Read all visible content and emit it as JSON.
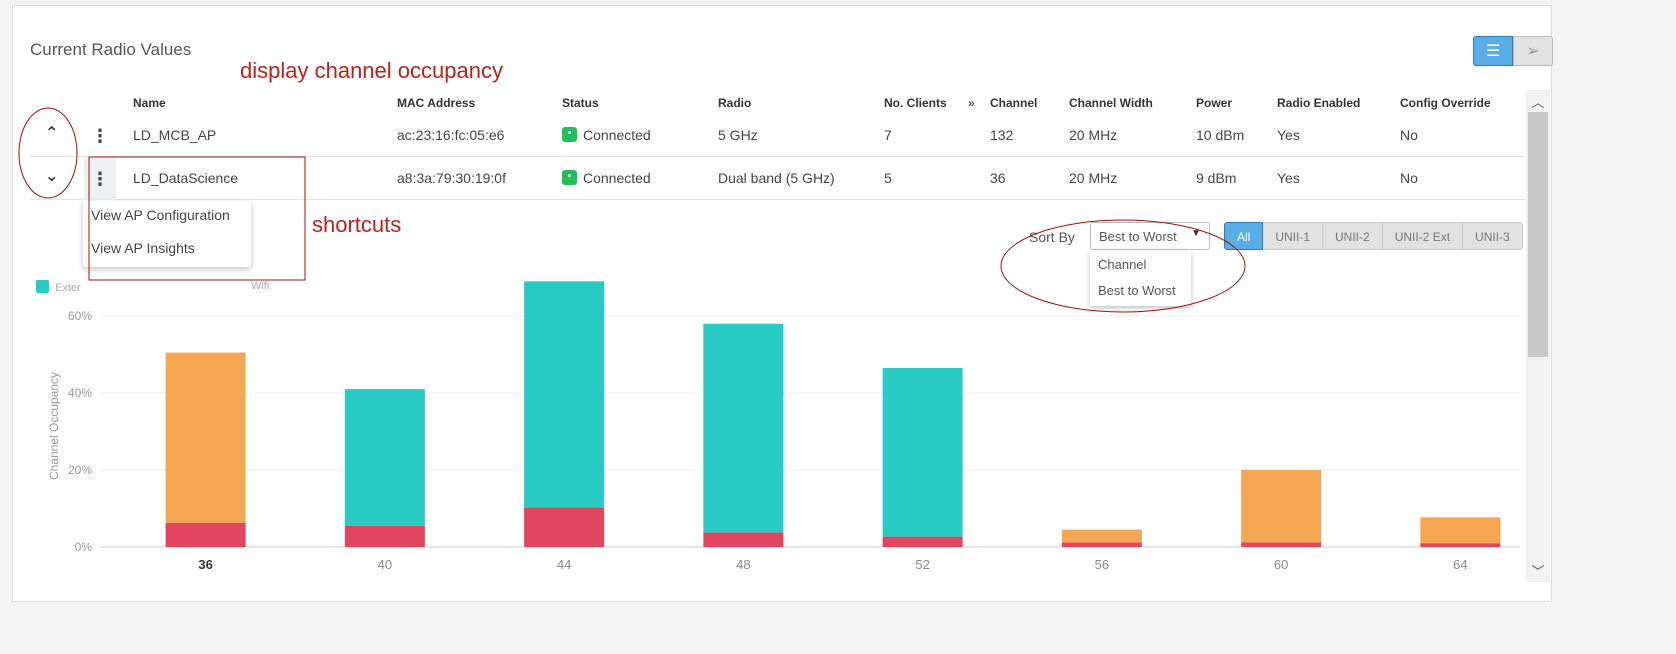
{
  "title": "Current Radio Values",
  "view_toggle": {
    "list_icon": "list-icon",
    "map_icon": "cursor-arrow-icon",
    "active": "list"
  },
  "table": {
    "columns": [
      "Name",
      "MAC Address",
      "Status",
      "Radio",
      "No. Clients",
      "Channel",
      "Channel Width",
      "Power",
      "Radio Enabled",
      "Config Override"
    ],
    "rows": [
      {
        "name": "LD_MCB_AP",
        "mac": "ac:23:16:fc:05:e6",
        "status": "Connected",
        "radio": "5 GHz",
        "clients": "7",
        "channel": "132",
        "width": "20 MHz",
        "power": "10 dBm",
        "enabled": "Yes",
        "override": "No"
      },
      {
        "name": "LD_DataScience",
        "mac": "a8:3a:79:30:19:0f",
        "status": "Connected",
        "radio": "Dual band (5 GHz)",
        "clients": "5",
        "channel": "36",
        "width": "20 MHz",
        "power": "9 dBm",
        "enabled": "Yes",
        "override": "No"
      }
    ]
  },
  "context_menu": [
    "View AP Configuration",
    "View AP Insights"
  ],
  "legend": {
    "left": "Exter",
    "right": "Wifi"
  },
  "sort": {
    "label": "Sort By",
    "value": "Best to Worst",
    "options": [
      "Channel",
      "Best to Worst"
    ]
  },
  "bands": [
    "All",
    "UNII-1",
    "UNII-2",
    "UNII-2 Ext",
    "UNII-3"
  ],
  "annotations": [
    "display channel occupancy",
    "shortcuts"
  ],
  "colors": {
    "teal": "#27cbc4",
    "orange": "#f5a652",
    "red": "#e2465e",
    "accent": "#5aaee8"
  },
  "chart_data": {
    "type": "bar",
    "stacked": true,
    "ylabel": "Channel Occupancy",
    "ylim": [
      0,
      70
    ],
    "yticks": [
      "0%",
      "20%",
      "40%",
      "60%"
    ],
    "categories": [
      "36",
      "40",
      "44",
      "48",
      "52",
      "56",
      "60",
      "64"
    ],
    "series": [
      {
        "color": "#e2465e",
        "values": [
          6.3,
          5.5,
          10.3,
          3.8,
          2.7,
          1.2,
          1.2,
          1.0
        ]
      },
      {
        "color": "#27cbc4",
        "values": [
          0,
          35.5,
          58.7,
          54.2,
          43.8,
          0,
          0,
          0
        ]
      },
      {
        "color": "#f5a652",
        "values": [
          44.2,
          0,
          0,
          0,
          0,
          3.3,
          18.8,
          6.7
        ]
      }
    ],
    "grid": true
  }
}
